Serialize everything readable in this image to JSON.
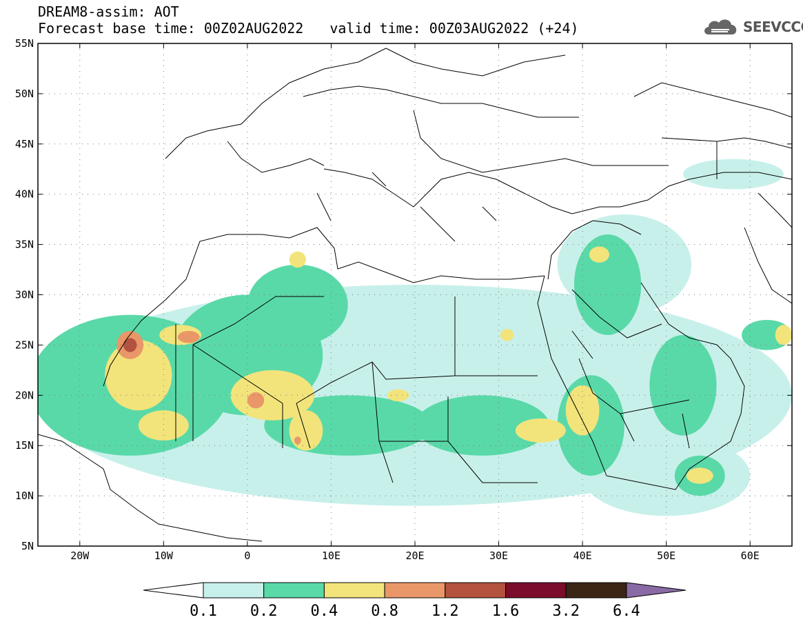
{
  "title": {
    "line1": "DREAM8-assim: AOT",
    "base_time": "Forecast base time: 00Z02AUG2022",
    "valid_time": "valid time: 00Z03AUG2022 (+24)"
  },
  "logo": {
    "text": "SEEVCCC",
    "icon": "cloud-icon"
  },
  "map": {
    "lon_range": [
      -25,
      65
    ],
    "lat_range": [
      5,
      55
    ],
    "lat_ticks": [
      {
        "value": 55,
        "label": "55N"
      },
      {
        "value": 50,
        "label": "50N"
      },
      {
        "value": 45,
        "label": "45N"
      },
      {
        "value": 40,
        "label": "40N"
      },
      {
        "value": 35,
        "label": "35N"
      },
      {
        "value": 30,
        "label": "30N"
      },
      {
        "value": 25,
        "label": "25N"
      },
      {
        "value": 20,
        "label": "20N"
      },
      {
        "value": 15,
        "label": "15N"
      },
      {
        "value": 10,
        "label": "10N"
      },
      {
        "value": 5,
        "label": "5N"
      }
    ],
    "lon_ticks": [
      {
        "value": -20,
        "label": "20W"
      },
      {
        "value": -10,
        "label": "10W"
      },
      {
        "value": 0,
        "label": "0"
      },
      {
        "value": 10,
        "label": "10E"
      },
      {
        "value": 20,
        "label": "20E"
      },
      {
        "value": 30,
        "label": "30E"
      },
      {
        "value": 40,
        "label": "40E"
      },
      {
        "value": 50,
        "label": "50E"
      },
      {
        "value": 60,
        "label": "60E"
      }
    ],
    "grid": "dotted",
    "aot_regions": [
      {
        "level": 0.1,
        "cx": 20,
        "cy": 20,
        "rx": 45,
        "ry": 11
      },
      {
        "level": 0.1,
        "cx": 45,
        "cy": 33,
        "rx": 8,
        "ry": 5
      },
      {
        "level": 0.1,
        "cx": 50,
        "cy": 12,
        "rx": 10,
        "ry": 4
      },
      {
        "level": 0.1,
        "cx": 58,
        "cy": 42,
        "rx": 6,
        "ry": 1.5
      },
      {
        "level": 0.2,
        "cx": -14,
        "cy": 21,
        "rx": 12,
        "ry": 7
      },
      {
        "level": 0.2,
        "cx": 0,
        "cy": 24,
        "rx": 9,
        "ry": 6
      },
      {
        "level": 0.2,
        "cx": 6,
        "cy": 29,
        "rx": 6,
        "ry": 4
      },
      {
        "level": 0.2,
        "cx": 12,
        "cy": 17,
        "rx": 10,
        "ry": 3
      },
      {
        "level": 0.2,
        "cx": 28,
        "cy": 17,
        "rx": 8,
        "ry": 3
      },
      {
        "level": 0.2,
        "cx": 41,
        "cy": 17,
        "rx": 4,
        "ry": 5
      },
      {
        "level": 0.2,
        "cx": 43,
        "cy": 31,
        "rx": 4,
        "ry": 5
      },
      {
        "level": 0.2,
        "cx": 52,
        "cy": 21,
        "rx": 4,
        "ry": 5
      },
      {
        "level": 0.2,
        "cx": 54,
        "cy": 12,
        "rx": 3,
        "ry": 2
      },
      {
        "level": 0.2,
        "cx": 62,
        "cy": 26,
        "rx": 3,
        "ry": 1.5
      },
      {
        "level": 0.4,
        "cx": -13,
        "cy": 22,
        "rx": 4,
        "ry": 3.5
      },
      {
        "level": 0.4,
        "cx": -10,
        "cy": 17,
        "rx": 3,
        "ry": 1.5
      },
      {
        "level": 0.4,
        "cx": -8,
        "cy": 26,
        "rx": 2.5,
        "ry": 1
      },
      {
        "level": 0.4,
        "cx": 3,
        "cy": 20,
        "rx": 5,
        "ry": 2.5
      },
      {
        "level": 0.4,
        "cx": 7,
        "cy": 16.5,
        "rx": 2,
        "ry": 2
      },
      {
        "level": 0.4,
        "cx": 6,
        "cy": 33.5,
        "rx": 1,
        "ry": 0.8
      },
      {
        "level": 0.4,
        "cx": 18,
        "cy": 20,
        "rx": 1.3,
        "ry": 0.6
      },
      {
        "level": 0.4,
        "cx": 35,
        "cy": 16.5,
        "rx": 3,
        "ry": 1.2
      },
      {
        "level": 0.4,
        "cx": 40,
        "cy": 18.5,
        "rx": 2,
        "ry": 2.5
      },
      {
        "level": 0.4,
        "cx": 42,
        "cy": 34,
        "rx": 1.2,
        "ry": 0.8
      },
      {
        "level": 0.4,
        "cx": 31,
        "cy": 26,
        "rx": 0.8,
        "ry": 0.6
      },
      {
        "level": 0.4,
        "cx": 54,
        "cy": 12,
        "rx": 1.6,
        "ry": 0.8
      },
      {
        "level": 0.4,
        "cx": 64,
        "cy": 26,
        "rx": 1,
        "ry": 1
      },
      {
        "level": 0.8,
        "cx": -14,
        "cy": 25,
        "rx": 1.6,
        "ry": 1.4
      },
      {
        "level": 0.8,
        "cx": -7,
        "cy": 25.8,
        "rx": 1.3,
        "ry": 0.6
      },
      {
        "level": 0.8,
        "cx": 1,
        "cy": 19.5,
        "rx": 1,
        "ry": 0.8
      },
      {
        "level": 0.8,
        "cx": 6,
        "cy": 15.5,
        "rx": 0.4,
        "ry": 0.4
      },
      {
        "level": 1.2,
        "cx": -14,
        "cy": 25,
        "rx": 0.8,
        "ry": 0.7
      }
    ]
  },
  "colorbar": {
    "levels": [
      "0.1",
      "0.2",
      "0.4",
      "0.8",
      "1.2",
      "1.6",
      "3.2",
      "6.4"
    ],
    "colors": [
      "#ffffff",
      "#c8f0eb",
      "#5ad9a8",
      "#f2e47b",
      "#e99768",
      "#b3523e",
      "#7b0d2b",
      "#3b2616",
      "#8a6aa4"
    ]
  }
}
